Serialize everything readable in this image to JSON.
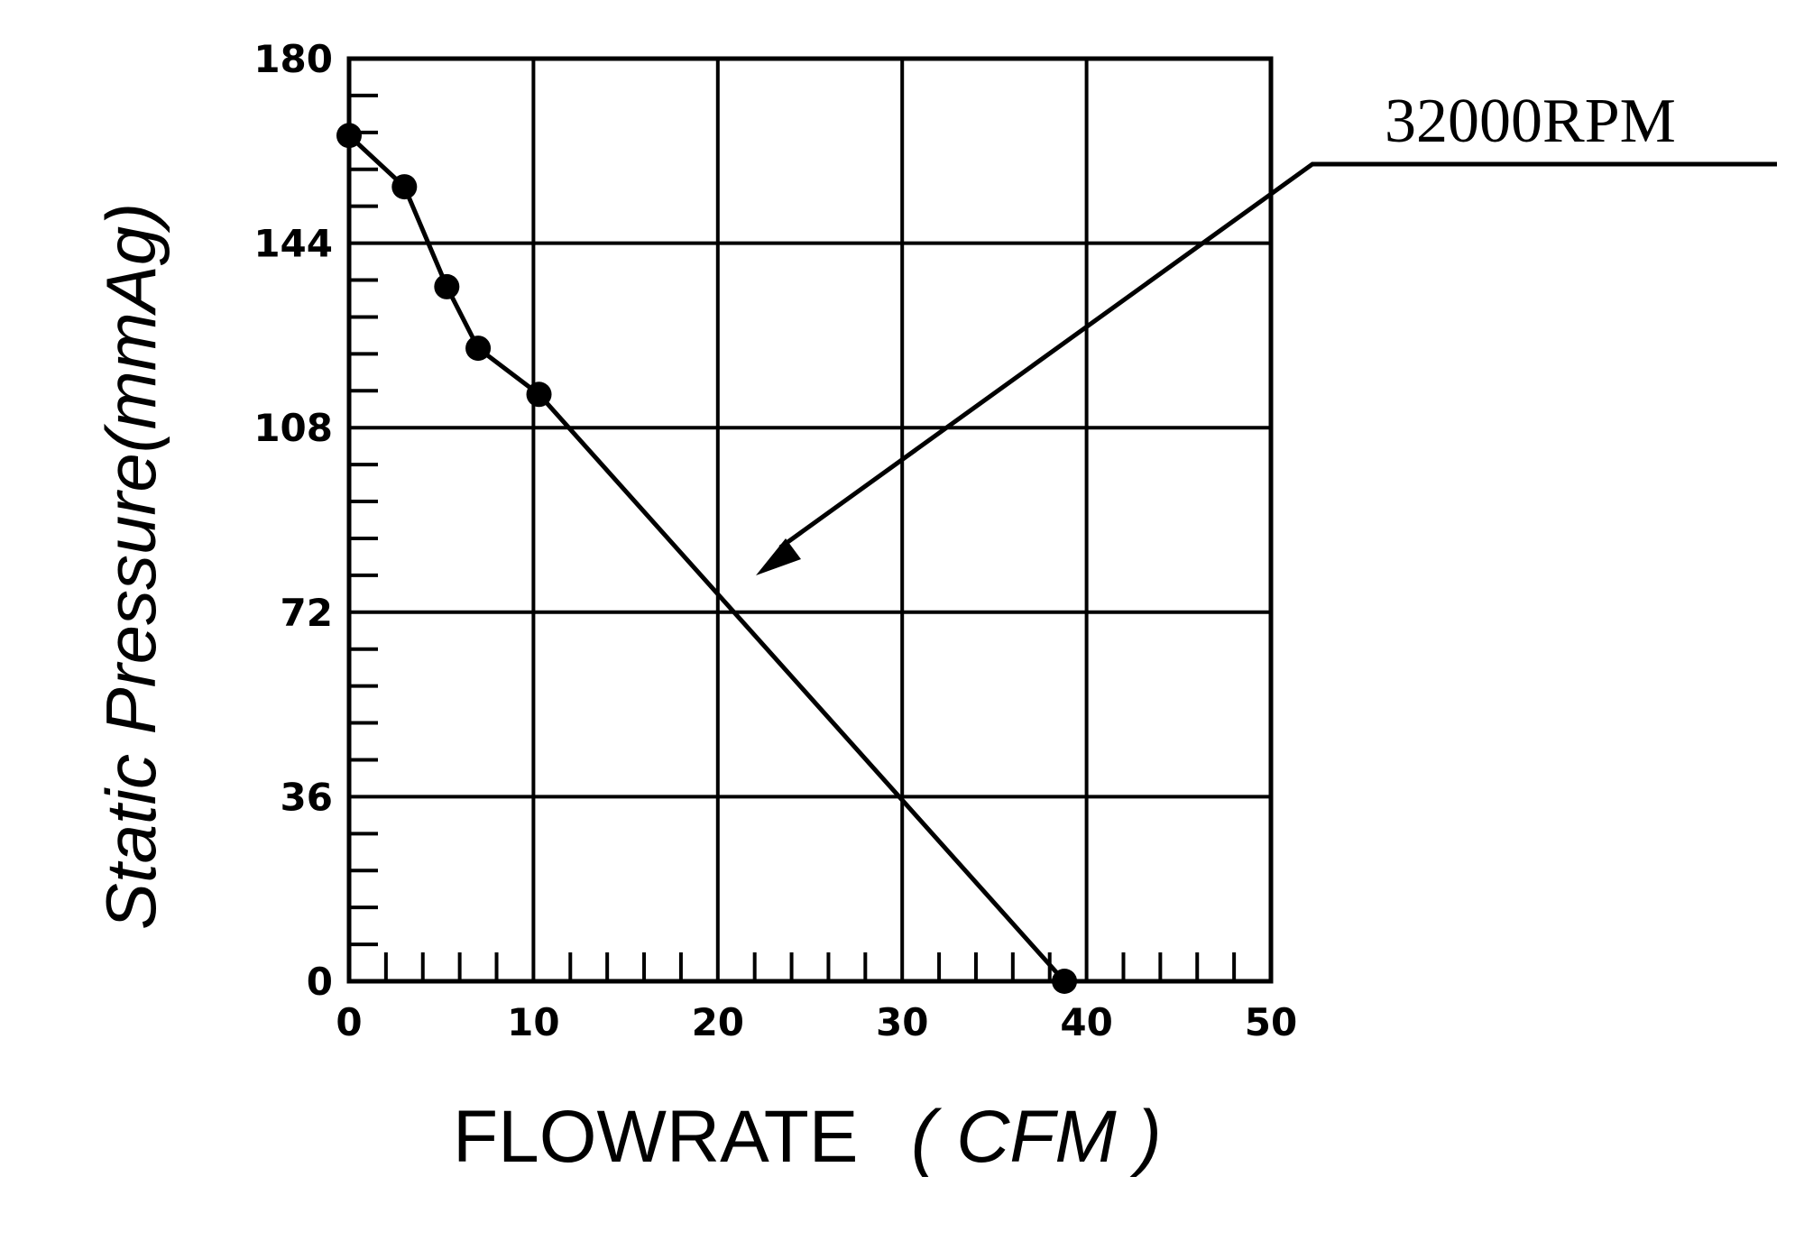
{
  "chart_data": {
    "type": "line",
    "title": "",
    "xlabel_main": "FLOWRATE",
    "xlabel_unit": "( CFM )",
    "ylabel": "Static Pressure(mmAg)",
    "xlim": [
      0,
      50
    ],
    "ylim": [
      0,
      180
    ],
    "x_ticks": [
      "0",
      "10",
      "20",
      "30",
      "40",
      "50"
    ],
    "y_ticks": [
      "0",
      "36",
      "72",
      "108",
      "144",
      "180"
    ],
    "grid": true,
    "series": [
      {
        "name": "32000RPM",
        "x": [
          0,
          3,
          5.3,
          7,
          10.3,
          38.8
        ],
        "y": [
          165,
          155,
          135.5,
          123.5,
          114.5,
          0
        ],
        "marker": "filled-circle",
        "color": "#000000"
      }
    ],
    "annotation": {
      "text": "32000RPM"
    }
  }
}
